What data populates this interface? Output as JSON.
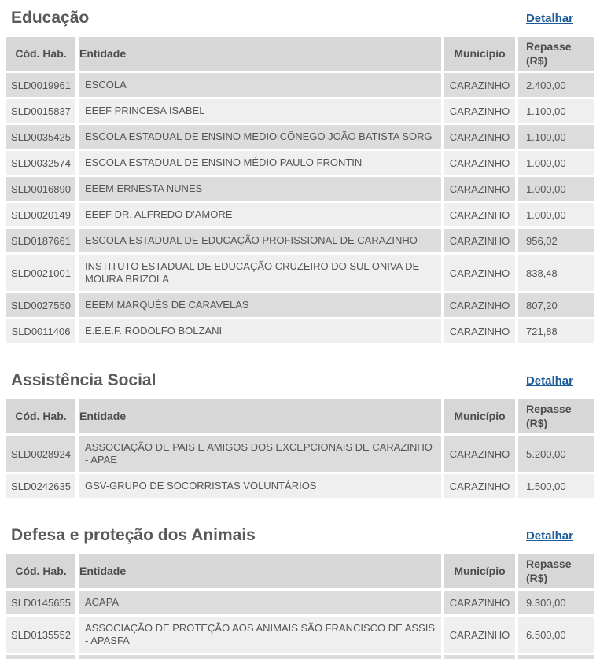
{
  "columns": [
    "Cód. Hab.",
    "Entidade",
    "Município",
    "Repasse (R$)"
  ],
  "colors": {
    "link_blue": "#1b5a99",
    "header_bg": "#d7d7d7",
    "row_odd_bg": "#dcdcdc",
    "row_even_bg": "#efefef",
    "heading_text": "#595959",
    "cell_text": "#555555"
  },
  "sections": [
    {
      "id": "educacao",
      "title": "Educação",
      "link_label": "Detalhar",
      "rows": [
        [
          "SLD0019961",
          "ESCOLA",
          "CARAZINHO",
          "2.400,00"
        ],
        [
          "SLD0015837",
          "EEEF PRINCESA ISABEL",
          "CARAZINHO",
          "1.100,00"
        ],
        [
          "SLD0035425",
          "ESCOLA ESTADUAL DE ENSINO MEDIO CÔNEGO JOÃO BATISTA SORG",
          "CARAZINHO",
          "1.100,00"
        ],
        [
          "SLD0032574",
          "ESCOLA ESTADUAL DE ENSINO MÉDIO PAULO FRONTIN",
          "CARAZINHO",
          "1.000,00"
        ],
        [
          "SLD0016890",
          "EEEM ERNESTA NUNES",
          "CARAZINHO",
          "1.000,00"
        ],
        [
          "SLD0020149",
          "EEEF DR. ALFREDO D'AMORE",
          "CARAZINHO",
          "1.000,00"
        ],
        [
          "SLD0187661",
          "ESCOLA ESTADUAL DE EDUCAÇÃO PROFISSIONAL DE CARAZINHO",
          "CARAZINHO",
          "956,02"
        ],
        [
          "SLD0021001",
          "INSTITUTO ESTADUAL DE EDUCAÇÃO CRUZEIRO DO SUL ONIVA DE MOURA BRIZOLA",
          "CARAZINHO",
          "838,48"
        ],
        [
          "SLD0027550",
          "EEEM MARQUÊS DE CARAVELAS",
          "CARAZINHO",
          "807,20"
        ],
        [
          "SLD0011406",
          "E.E.E.F. RODOLFO BOLZANI",
          "CARAZINHO",
          "721,88"
        ]
      ],
      "truncated_next_row": false
    },
    {
      "id": "assistencia-social",
      "title": "Assistência Social",
      "link_label": "Detalhar",
      "rows": [
        [
          "SLD0028924",
          "ASSOCIAÇÃO DE PAIS E AMIGOS DOS EXCEPCIONAIS DE CARAZINHO - APAE",
          "CARAZINHO",
          "5.200,00"
        ],
        [
          "SLD0242635",
          "GSV-GRUPO DE SOCORRISTAS VOLUNTÁRIOS",
          "CARAZINHO",
          "1.500,00"
        ]
      ],
      "truncated_next_row": false
    },
    {
      "id": "defesa-e-protecao-dos-animais",
      "title": "Defesa e proteção dos Animais",
      "link_label": "Detalhar",
      "rows": [
        [
          "SLD0145655",
          "ACAPA",
          "CARAZINHO",
          "9.300,00"
        ],
        [
          "SLD0135552",
          "ASSOCIAÇÃO DE PROTEÇÃO AOS ANIMAIS SÃO FRANCISCO DE ASSIS - APASFA",
          "CARAZINHO",
          "6.500,00"
        ]
      ],
      "truncated_next_row": true
    }
  ]
}
